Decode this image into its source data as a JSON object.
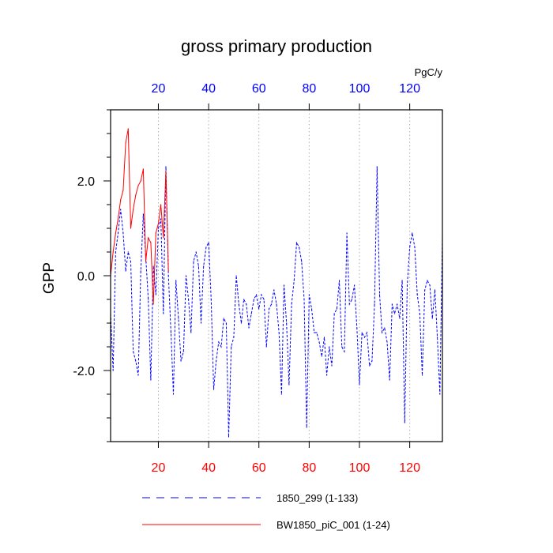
{
  "chart_data": {
    "type": "line",
    "title": "gross primary production",
    "units": "PgC/y",
    "ylabel": "GPP",
    "xlim": [
      1,
      133
    ],
    "ylim": [
      -3.5,
      3.5
    ],
    "x_ticks": [
      20,
      40,
      60,
      80,
      100,
      120
    ],
    "x_tick_labels": [
      "20",
      "40",
      "60",
      "80",
      "100",
      "120"
    ],
    "y_ticks": [
      -2.0,
      0.0,
      2.0
    ],
    "y_tick_labels": [
      "-2.0",
      "0.0",
      "2.0"
    ],
    "grid": "vertical dotted at x ticks",
    "legend_position": "bottom",
    "series": [
      {
        "name": "1850_299 (1-133)",
        "color": "#0000ff",
        "dash": "dashed",
        "x_start": 1,
        "values": [
          -0.8,
          -2.0,
          0.5,
          0.9,
          1.4,
          0.9,
          0.1,
          0.5,
          0.3,
          -1.6,
          -1.8,
          -2.1,
          0.1,
          1.3,
          0.4,
          -0.5,
          -2.2,
          0.2,
          -0.4,
          1.0,
          1.2,
          -0.8,
          2.3,
          0.0,
          -1.2,
          -2.5,
          -0.1,
          -0.9,
          -1.8,
          -1.6,
          0.0,
          -0.5,
          -1.2,
          0.3,
          0.5,
          0.2,
          -1.0,
          0.2,
          0.6,
          0.7,
          -0.5,
          -2.4,
          -1.8,
          -1.4,
          -1.5,
          -0.9,
          -1.0,
          -3.4,
          -1.5,
          -1.3,
          0.0,
          -0.6,
          -1.0,
          -0.5,
          -0.6,
          -1.1,
          -0.8,
          -0.5,
          -0.4,
          -0.7,
          -0.4,
          -0.5,
          -1.5,
          -0.7,
          -0.6,
          -0.3,
          -0.6,
          -1.2,
          -2.5,
          -0.2,
          -1.0,
          -2.3,
          -0.6,
          -0.1,
          0.7,
          0.6,
          0.3,
          -0.5,
          -3.2,
          -0.4,
          -0.7,
          -1.2,
          -1.2,
          -1.4,
          -1.7,
          -1.3,
          -2.1,
          -1.5,
          -1.9,
          -0.8,
          -0.7,
          -0.1,
          -1.5,
          -1.6,
          0.9,
          -0.6,
          -0.5,
          -0.2,
          -1.1,
          -2.3,
          -1.2,
          -1.3,
          -1.2,
          -1.9,
          -1.8,
          -0.6,
          2.3,
          -0.4,
          -1.2,
          -1.1,
          -1.4,
          -2.2,
          -0.6,
          -0.8,
          -0.6,
          -0.9,
          -0.1,
          -3.1,
          -0.2,
          0.6,
          0.9,
          0.6,
          -0.4,
          -0.8,
          -2.1,
          -0.3,
          -0.1,
          -0.2,
          -0.9,
          -0.3,
          -1.3,
          -2.5,
          0.8
        ]
      },
      {
        "name": "BW1850_piC_001 (1-24)",
        "color": "#ff0000",
        "dash": "solid",
        "x_start": 1,
        "values": [
          0.0,
          0.5,
          0.9,
          1.2,
          1.6,
          1.8,
          2.8,
          3.1,
          1.0,
          1.4,
          1.7,
          1.9,
          2.0,
          2.25,
          0.3,
          0.8,
          0.7,
          -0.6,
          0.9,
          1.1,
          1.5,
          0.8,
          2.2,
          0.1
        ]
      }
    ]
  }
}
